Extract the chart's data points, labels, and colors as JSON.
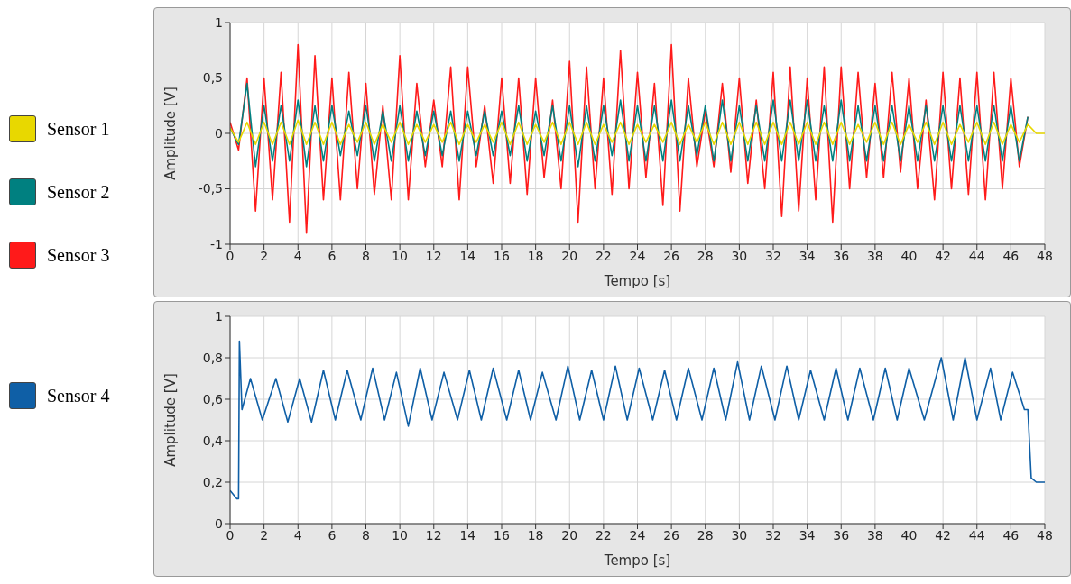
{
  "chart_data": [
    {
      "type": "line",
      "xlabel": "Tempo [s]",
      "ylabel": "Amplitude [V]",
      "xlim": [
        0,
        48
      ],
      "xticks": [
        0,
        2,
        4,
        6,
        8,
        10,
        12,
        14,
        16,
        18,
        20,
        22,
        24,
        26,
        28,
        30,
        32,
        34,
        36,
        38,
        40,
        42,
        44,
        46,
        48
      ],
      "ylim": [
        -1,
        1
      ],
      "yticks": [
        -1,
        {
          "value": -0.5,
          "label": "-0,5"
        },
        0,
        {
          "value": 0.5,
          "label": "0,5"
        },
        1
      ],
      "grid": true,
      "legend": "left",
      "marker": "none",
      "line_style": "solid",
      "x": [
        0,
        0.5,
        1,
        1.5,
        2,
        2.5,
        3,
        3.5,
        4,
        4.5,
        5,
        5.5,
        6,
        6.5,
        7,
        7.5,
        8,
        8.5,
        9,
        9.5,
        10,
        10.5,
        11,
        11.5,
        12,
        12.5,
        13,
        13.5,
        14,
        14.5,
        15,
        15.5,
        16,
        16.5,
        17,
        17.5,
        18,
        18.5,
        19,
        19.5,
        20,
        20.5,
        21,
        21.5,
        22,
        22.5,
        23,
        23.5,
        24,
        24.5,
        25,
        25.5,
        26,
        26.5,
        27,
        27.5,
        28,
        28.5,
        29,
        29.5,
        30,
        30.5,
        31,
        31.5,
        32,
        32.5,
        33,
        33.5,
        34,
        34.5,
        35,
        35.5,
        36,
        36.5,
        37,
        37.5,
        38,
        38.5,
        39,
        39.5,
        40,
        40.5,
        41,
        41.5,
        42,
        42.5,
        43,
        43.5,
        44,
        44.5,
        45,
        45.5,
        46,
        46.5,
        47,
        47.5,
        48
      ],
      "series": [
        {
          "name": "Sensor 1",
          "color": "#e8d800",
          "values": [
            0.05,
            -0.08,
            0.1,
            -0.1,
            0.1,
            -0.1,
            0.1,
            -0.1,
            0.12,
            -0.1,
            0.1,
            -0.1,
            0.1,
            -0.1,
            0.08,
            -0.08,
            0.1,
            -0.1,
            0.08,
            -0.08,
            0.1,
            -0.1,
            0.08,
            -0.08,
            0.08,
            -0.08,
            0.1,
            -0.1,
            0.08,
            -0.08,
            0.08,
            -0.08,
            0.1,
            -0.1,
            0.1,
            -0.1,
            0.08,
            -0.08,
            0.1,
            -0.1,
            0.1,
            -0.1,
            0.1,
            -0.1,
            0.08,
            -0.08,
            0.1,
            -0.1,
            0.08,
            -0.08,
            0.08,
            -0.08,
            0.1,
            -0.1,
            0.08,
            -0.08,
            0.1,
            -0.1,
            0.1,
            -0.1,
            0.1,
            -0.1,
            0.1,
            -0.1,
            0.1,
            -0.1,
            0.1,
            -0.1,
            0.1,
            -0.1,
            0.1,
            -0.1,
            0.1,
            -0.1,
            0.08,
            -0.08,
            0.1,
            -0.1,
            0.1,
            -0.1,
            0.08,
            -0.08,
            0.1,
            -0.1,
            0.1,
            -0.1,
            0.08,
            -0.08,
            0.1,
            -0.1,
            0.1,
            -0.1,
            0.08,
            -0.08,
            0.08,
            0,
            0
          ]
        },
        {
          "name": "Sensor 2",
          "color": "#008080",
          "values": [
            0.05,
            -0.1,
            0.45,
            -0.3,
            0.25,
            -0.25,
            0.25,
            -0.25,
            0.3,
            -0.3,
            0.25,
            -0.25,
            0.25,
            -0.2,
            0.2,
            -0.2,
            0.25,
            -0.25,
            0.2,
            -0.25,
            0.25,
            -0.25,
            0.2,
            -0.2,
            0.2,
            -0.2,
            0.2,
            -0.25,
            0.2,
            -0.2,
            0.2,
            -0.2,
            0.2,
            -0.2,
            0.25,
            -0.25,
            0.2,
            -0.2,
            0.25,
            -0.25,
            0.25,
            -0.3,
            0.25,
            -0.25,
            0.25,
            -0.2,
            0.3,
            -0.25,
            0.25,
            -0.25,
            0.25,
            -0.25,
            0.3,
            -0.25,
            0.25,
            -0.2,
            0.25,
            -0.25,
            0.3,
            -0.25,
            0.25,
            -0.25,
            0.25,
            -0.25,
            0.3,
            -0.25,
            0.3,
            -0.25,
            0.3,
            -0.25,
            0.25,
            -0.25,
            0.3,
            -0.25,
            0.25,
            -0.25,
            0.25,
            -0.25,
            0.25,
            -0.25,
            0.25,
            -0.25,
            0.25,
            -0.25,
            0.25,
            -0.25,
            0.25,
            -0.25,
            0.25,
            -0.25,
            0.25,
            -0.25,
            0.25,
            -0.25,
            0.15,
            null,
            null
          ]
        },
        {
          "name": "Sensor 3",
          "color": "#ff1a1a",
          "values": [
            0.1,
            -0.15,
            0.5,
            -0.7,
            0.5,
            -0.6,
            0.55,
            -0.8,
            0.8,
            -0.9,
            0.7,
            -0.6,
            0.5,
            -0.6,
            0.55,
            -0.5,
            0.45,
            -0.55,
            0.25,
            -0.6,
            0.7,
            -0.6,
            0.45,
            -0.3,
            0.3,
            -0.3,
            0.6,
            -0.6,
            0.6,
            -0.3,
            0.25,
            -0.45,
            0.5,
            -0.45,
            0.5,
            -0.55,
            0.5,
            -0.4,
            0.3,
            -0.5,
            0.65,
            -0.8,
            0.6,
            -0.5,
            0.5,
            -0.55,
            0.75,
            -0.5,
            0.55,
            -0.4,
            0.45,
            -0.65,
            0.8,
            -0.7,
            0.5,
            -0.3,
            0.2,
            -0.3,
            0.45,
            -0.35,
            0.5,
            -0.45,
            0.3,
            -0.5,
            0.55,
            -0.75,
            0.6,
            -0.7,
            0.5,
            -0.6,
            0.6,
            -0.8,
            0.6,
            -0.5,
            0.55,
            -0.4,
            0.45,
            -0.4,
            0.55,
            -0.35,
            0.5,
            -0.5,
            0.3,
            -0.6,
            0.55,
            -0.5,
            0.5,
            -0.55,
            0.55,
            -0.6,
            0.55,
            -0.5,
            0.5,
            -0.3,
            0.15,
            null,
            null
          ]
        }
      ]
    },
    {
      "type": "line",
      "xlabel": "Tempo [s]",
      "ylabel": "Amplitude [V]",
      "xlim": [
        0,
        48
      ],
      "xticks": [
        0,
        2,
        4,
        6,
        8,
        10,
        12,
        14,
        16,
        18,
        20,
        22,
        24,
        26,
        28,
        30,
        32,
        34,
        36,
        38,
        40,
        42,
        44,
        46,
        48
      ],
      "ylim": [
        0,
        1
      ],
      "yticks": [
        0,
        {
          "value": 0.2,
          "label": "0,2"
        },
        {
          "value": 0.4,
          "label": "0,4"
        },
        {
          "value": 0.6,
          "label": "0,6"
        },
        {
          "value": 0.8,
          "label": "0,8"
        },
        1
      ],
      "grid": true,
      "legend": "left",
      "marker": "none",
      "line_style": "solid",
      "x": [
        0,
        0.4,
        0.5,
        0.55,
        0.7,
        1.2,
        1.9,
        2.7,
        3.4,
        4.1,
        4.8,
        5.5,
        6.2,
        6.9,
        7.7,
        8.4,
        9.1,
        9.8,
        10.5,
        11.2,
        11.9,
        12.6,
        13.4,
        14.1,
        14.8,
        15.5,
        16.3,
        17.0,
        17.7,
        18.4,
        19.2,
        19.9,
        20.6,
        21.3,
        22.0,
        22.7,
        23.4,
        24.1,
        24.9,
        25.6,
        26.3,
        27.0,
        27.8,
        28.5,
        29.2,
        29.9,
        30.6,
        31.3,
        32.1,
        32.8,
        33.5,
        34.2,
        35.0,
        35.7,
        36.4,
        37.1,
        37.9,
        38.6,
        39.3,
        40.0,
        40.9,
        41.9,
        42.6,
        43.3,
        44.0,
        44.8,
        45.4,
        46.1,
        46.8,
        47.0,
        47.2,
        47.5,
        48
      ],
      "series": [
        {
          "name": "Sensor 4",
          "color": "#0f5fa6",
          "values": [
            0.16,
            0.12,
            0.12,
            0.88,
            0.55,
            0.7,
            0.5,
            0.7,
            0.49,
            0.7,
            0.49,
            0.74,
            0.5,
            0.74,
            0.5,
            0.75,
            0.5,
            0.73,
            0.47,
            0.75,
            0.5,
            0.73,
            0.5,
            0.74,
            0.5,
            0.75,
            0.5,
            0.74,
            0.5,
            0.73,
            0.5,
            0.76,
            0.5,
            0.74,
            0.5,
            0.76,
            0.5,
            0.75,
            0.5,
            0.74,
            0.5,
            0.75,
            0.5,
            0.75,
            0.5,
            0.78,
            0.5,
            0.76,
            0.5,
            0.76,
            0.5,
            0.74,
            0.5,
            0.75,
            0.5,
            0.75,
            0.5,
            0.75,
            0.5,
            0.75,
            0.5,
            0.8,
            0.5,
            0.8,
            0.5,
            0.75,
            0.5,
            0.73,
            0.55,
            0.55,
            0.22,
            0.2,
            0.2
          ]
        }
      ]
    }
  ]
}
